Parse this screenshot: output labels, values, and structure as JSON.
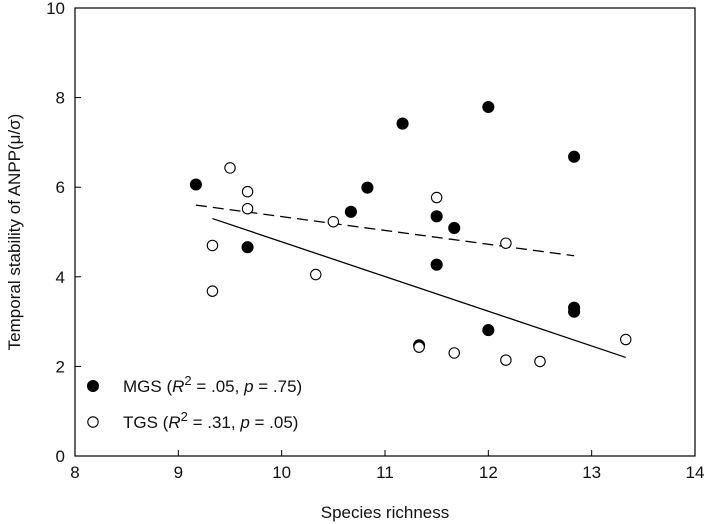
{
  "chart_data": {
    "type": "scatter",
    "xlabel": "Species richness",
    "ylabel": "Temporal stability of ANPP(μ/σ)",
    "xlim": [
      8,
      14
    ],
    "ylim": [
      0,
      10
    ],
    "xticks": [
      "8",
      "9",
      "10",
      "11",
      "12",
      "13",
      "14"
    ],
    "yticks": [
      "0",
      "2",
      "4",
      "6",
      "8",
      "10"
    ],
    "grid": false,
    "legend_placement": "bottom-left",
    "series": [
      {
        "name": "MGS",
        "marker": "filled-circle",
        "color": "#000000",
        "points": [
          [
            9.17,
            6.06
          ],
          [
            9.67,
            4.66
          ],
          [
            10.67,
            5.45
          ],
          [
            10.83,
            5.99
          ],
          [
            11.17,
            7.42
          ],
          [
            11.33,
            2.47
          ],
          [
            11.5,
            5.35
          ],
          [
            11.5,
            4.27
          ],
          [
            11.67,
            5.09
          ],
          [
            12.0,
            7.79
          ],
          [
            12.0,
            2.81
          ],
          [
            12.83,
            6.68
          ],
          [
            12.83,
            3.31
          ],
          [
            12.83,
            3.22
          ]
        ],
        "fit": {
          "style": "dashed",
          "x_start": 9.17,
          "y_start": 5.6,
          "x_end": 12.83,
          "y_end": 4.47
        },
        "legend": {
          "prefix": "MGS (",
          "r": "R",
          "sup": "2",
          "mid": " = .05, ",
          "p": "p",
          "suffix": " = .75)"
        }
      },
      {
        "name": "TGS",
        "marker": "open-circle",
        "color": "#000000",
        "points": [
          [
            9.33,
            4.7
          ],
          [
            9.33,
            3.68
          ],
          [
            9.5,
            6.43
          ],
          [
            9.67,
            5.9
          ],
          [
            9.67,
            5.52
          ],
          [
            10.33,
            4.05
          ],
          [
            10.5,
            5.23
          ],
          [
            11.33,
            2.43
          ],
          [
            11.5,
            5.77
          ],
          [
            11.67,
            2.3
          ],
          [
            12.17,
            4.75
          ],
          [
            12.17,
            2.14
          ],
          [
            12.5,
            2.11
          ],
          [
            13.33,
            2.6
          ]
        ],
        "fit": {
          "style": "solid",
          "x_start": 9.33,
          "y_start": 5.3,
          "x_end": 13.33,
          "y_end": 2.2
        },
        "legend": {
          "prefix": "TGS (",
          "r": "R",
          "sup": "2",
          "mid": " = .31, ",
          "p": "p",
          "suffix": " = .05)"
        }
      }
    ]
  }
}
